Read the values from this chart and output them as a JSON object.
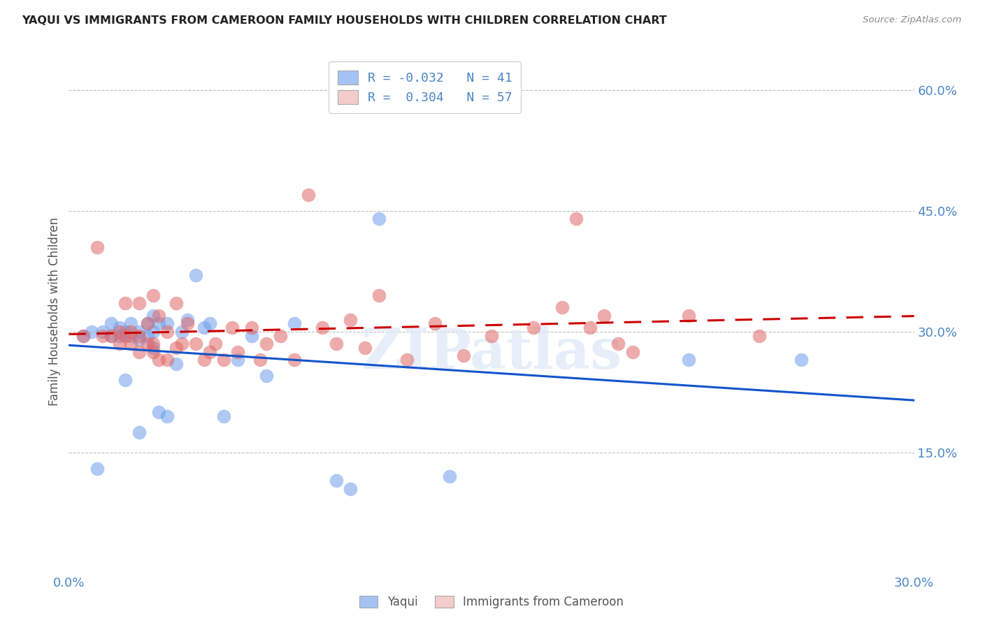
{
  "title": "YAQUI VS IMMIGRANTS FROM CAMEROON FAMILY HOUSEHOLDS WITH CHILDREN CORRELATION CHART",
  "source": "Source: ZipAtlas.com",
  "ylabel": "Family Households with Children",
  "xmin": 0.0,
  "xmax": 0.3,
  "ymin": 0.0,
  "ymax": 0.65,
  "yticks": [
    0.0,
    0.15,
    0.3,
    0.45,
    0.6
  ],
  "ytick_labels": [
    "",
    "15.0%",
    "30.0%",
    "45.0%",
    "60.0%"
  ],
  "xticks": [
    0.0,
    0.05,
    0.1,
    0.15,
    0.2,
    0.25,
    0.3
  ],
  "xtick_labels": [
    "0.0%",
    "",
    "",
    "",
    "",
    "",
    "30.0%"
  ],
  "legend_blue_r": "-0.032",
  "legend_blue_n": "41",
  "legend_pink_r": "0.304",
  "legend_pink_n": "57",
  "legend_label_blue": "Yaqui",
  "legend_label_pink": "Immigrants from Cameroon",
  "blue_color": "#a4c2f4",
  "pink_color": "#f4cccc",
  "blue_scatter_color": "#6d9eeb",
  "pink_scatter_color": "#e06666",
  "blue_line_color": "#1155cc",
  "pink_line_color": "#cc0000",
  "watermark": "ZIPatlas",
  "blue_x": [
    0.005,
    0.008,
    0.01,
    0.012,
    0.015,
    0.015,
    0.018,
    0.018,
    0.02,
    0.02,
    0.022,
    0.022,
    0.025,
    0.025,
    0.025,
    0.028,
    0.028,
    0.03,
    0.03,
    0.03,
    0.032,
    0.032,
    0.035,
    0.035,
    0.038,
    0.04,
    0.042,
    0.045,
    0.048,
    0.05,
    0.055,
    0.06,
    0.065,
    0.07,
    0.08,
    0.095,
    0.1,
    0.11,
    0.135,
    0.22,
    0.26
  ],
  "blue_y": [
    0.295,
    0.3,
    0.13,
    0.3,
    0.295,
    0.31,
    0.295,
    0.305,
    0.24,
    0.3,
    0.295,
    0.31,
    0.175,
    0.29,
    0.3,
    0.295,
    0.31,
    0.28,
    0.3,
    0.32,
    0.2,
    0.31,
    0.195,
    0.31,
    0.26,
    0.3,
    0.315,
    0.37,
    0.305,
    0.31,
    0.195,
    0.265,
    0.295,
    0.245,
    0.31,
    0.115,
    0.105,
    0.44,
    0.12,
    0.265,
    0.265
  ],
  "pink_x": [
    0.005,
    0.01,
    0.012,
    0.015,
    0.018,
    0.018,
    0.02,
    0.02,
    0.022,
    0.022,
    0.025,
    0.025,
    0.025,
    0.028,
    0.028,
    0.03,
    0.03,
    0.03,
    0.032,
    0.032,
    0.035,
    0.035,
    0.038,
    0.038,
    0.04,
    0.042,
    0.045,
    0.048,
    0.05,
    0.052,
    0.055,
    0.058,
    0.06,
    0.065,
    0.068,
    0.07,
    0.075,
    0.08,
    0.085,
    0.09,
    0.095,
    0.1,
    0.105,
    0.11,
    0.12,
    0.13,
    0.14,
    0.15,
    0.165,
    0.175,
    0.18,
    0.185,
    0.19,
    0.195,
    0.2,
    0.22,
    0.245
  ],
  "pink_y": [
    0.295,
    0.405,
    0.295,
    0.295,
    0.285,
    0.3,
    0.295,
    0.335,
    0.285,
    0.3,
    0.275,
    0.295,
    0.335,
    0.285,
    0.31,
    0.275,
    0.285,
    0.345,
    0.265,
    0.32,
    0.265,
    0.3,
    0.28,
    0.335,
    0.285,
    0.31,
    0.285,
    0.265,
    0.275,
    0.285,
    0.265,
    0.305,
    0.275,
    0.305,
    0.265,
    0.285,
    0.295,
    0.265,
    0.47,
    0.305,
    0.285,
    0.315,
    0.28,
    0.345,
    0.265,
    0.31,
    0.27,
    0.295,
    0.305,
    0.33,
    0.44,
    0.305,
    0.32,
    0.285,
    0.275,
    0.32,
    0.295
  ]
}
